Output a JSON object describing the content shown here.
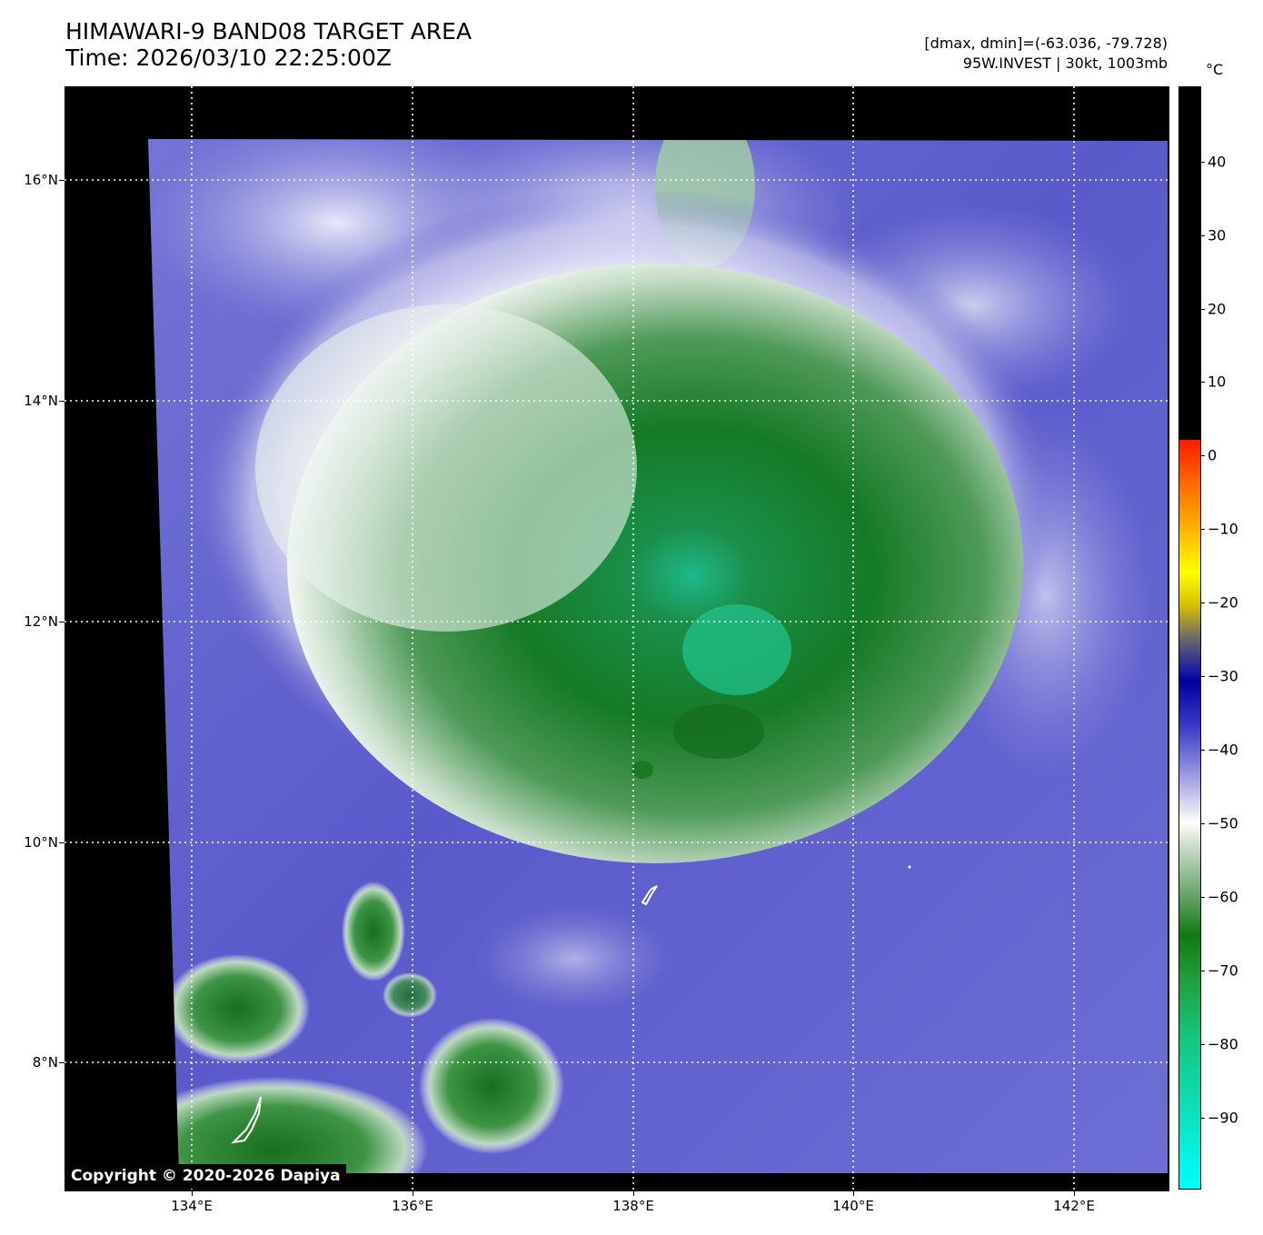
{
  "title": {
    "line1": "HIMAWARI-9 BAND08 TARGET AREA",
    "line2": "Time: 2026/03/10 22:25:00Z"
  },
  "info": {
    "dmax_dmin": "[dmax, dmin]=(-63.036, -79.728)",
    "storm": "95W.INVEST | 30kt, 1003mb"
  },
  "copyright": "Copyright © 2020-2026 Dapiya",
  "lat_labels": [
    "16°N",
    "14°N",
    "12°N",
    "10°N",
    "8°N"
  ],
  "lon_labels": [
    "134°E",
    "136°E",
    "138°E",
    "140°E",
    "142°E"
  ],
  "colorbar": {
    "unit": "°C",
    "labels": [
      "40",
      "30",
      "20",
      "10",
      "0",
      "−10",
      "−20",
      "−30",
      "−40",
      "−50",
      "−60",
      "−70",
      "−80",
      "−90"
    ]
  },
  "colors": {
    "background": "#000000",
    "clear_sky": "#5a5ac8",
    "cloud_white": "#f2f4f8",
    "cloud_green": "#1b7a2a",
    "coldest_core": "#19c08c",
    "grid": "#ffffff"
  }
}
